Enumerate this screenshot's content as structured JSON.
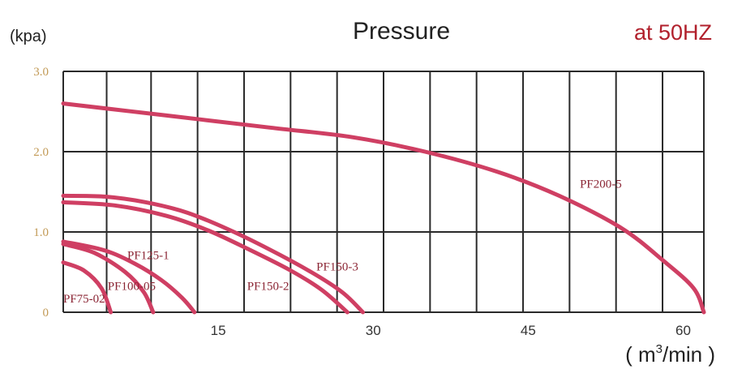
{
  "chart_data": {
    "type": "line",
    "title": "Pressure",
    "subtitle": "at 50HZ",
    "ylabel": "(kpa)",
    "xlabel_main": "( m",
    "xlabel_sup": "3",
    "xlabel_tail": "/min )",
    "xlim": [
      0,
      62
    ],
    "ylim": [
      0,
      3.0
    ],
    "x_tick_values": [
      15,
      30,
      45,
      60
    ],
    "x_tick_labels": [
      "15",
      "30",
      "45",
      "60"
    ],
    "y_tick_values": [
      0,
      1.0,
      2.0,
      3.0
    ],
    "y_tick_labels": [
      "0",
      "1.0",
      "2.0",
      "3.0"
    ],
    "x_grid": [
      0,
      4.2,
      8.5,
      13,
      17.5,
      22,
      26.5,
      31,
      35.5,
      40,
      44.5,
      49,
      53.5,
      58,
      62
    ],
    "y_grid": [
      0,
      1.0,
      2.0,
      3.0
    ],
    "grid": true,
    "series_color": "#cf3f63",
    "series": [
      {
        "name": "PF200-5",
        "x": [
          0,
          10,
          20,
          28,
          35,
          42,
          48,
          54,
          58,
          61,
          62
        ],
        "y": [
          2.6,
          2.45,
          2.3,
          2.18,
          2.0,
          1.75,
          1.45,
          1.05,
          0.65,
          0.3,
          0.0
        ]
      },
      {
        "name": "PF150-3",
        "x": [
          0,
          4,
          8,
          12,
          16,
          20,
          24,
          27,
          29
        ],
        "y": [
          1.45,
          1.44,
          1.37,
          1.24,
          1.03,
          0.78,
          0.5,
          0.25,
          0.0
        ]
      },
      {
        "name": "PF150-2",
        "x": [
          0,
          5,
          10,
          14,
          18,
          22,
          25,
          27.5
        ],
        "y": [
          1.37,
          1.33,
          1.2,
          1.02,
          0.78,
          0.52,
          0.28,
          0.0
        ]
      },
      {
        "name": "PF125-1",
        "x": [
          0,
          4,
          7,
          9.5,
          11.5,
          12.7
        ],
        "y": [
          0.88,
          0.77,
          0.6,
          0.4,
          0.18,
          0.0
        ]
      },
      {
        "name": "PF100-05",
        "x": [
          0,
          3,
          6,
          7.8,
          8.7
        ],
        "y": [
          0.85,
          0.74,
          0.5,
          0.25,
          0.0
        ]
      },
      {
        "name": "PF75-02",
        "x": [
          0,
          2,
          3.7,
          4.6
        ],
        "y": [
          0.62,
          0.52,
          0.3,
          0.0
        ]
      }
    ]
  }
}
